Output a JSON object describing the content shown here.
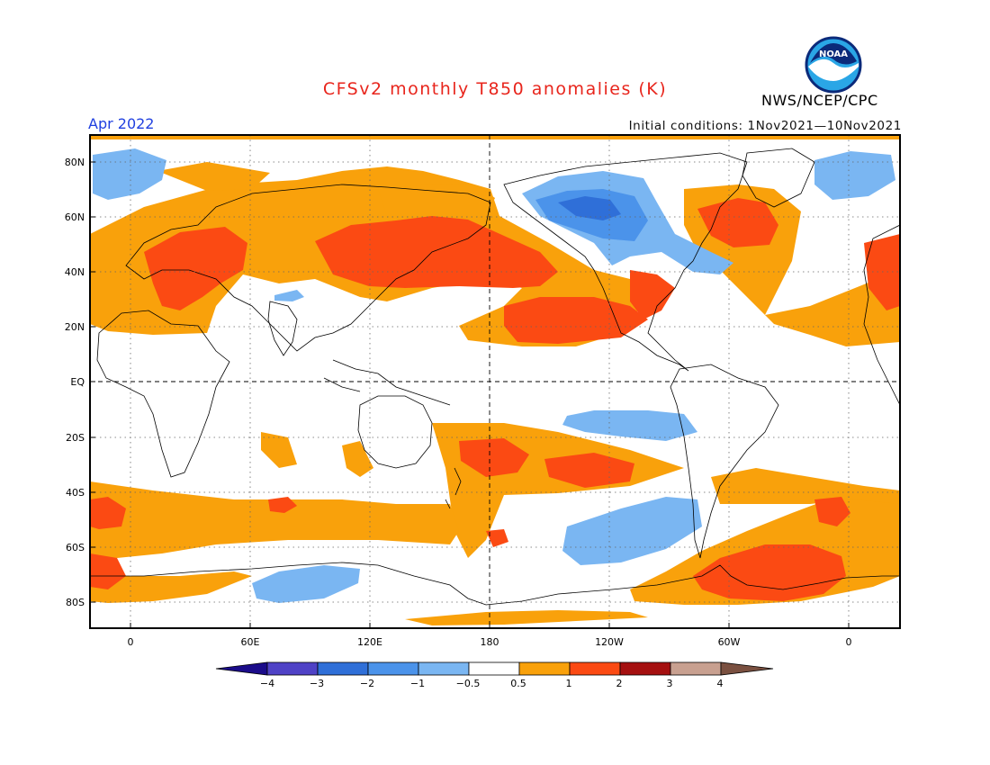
{
  "header": {
    "title": "CFSv2 monthly T850 anomalies (K)",
    "period": "Apr 2022",
    "initial_conditions": "Initial conditions: 1Nov2021—10Nov2021",
    "agency": "NWS/NCEP/CPC",
    "logo_text": "NOAA"
  },
  "map": {
    "lat_labels": [
      "80N",
      "60N",
      "40N",
      "20N",
      "EQ",
      "20S",
      "40S",
      "60S",
      "80S"
    ],
    "lon_labels": [
      "0",
      "60E",
      "120E",
      "180",
      "120W",
      "60W",
      "0"
    ],
    "projection": "cylindrical equidistant, centered 180",
    "grid": "dotted"
  },
  "colorbar": {
    "labels": [
      "−4",
      "−3",
      "−2",
      "−1",
      "−0.5",
      "0.5",
      "1",
      "2",
      "3",
      "4"
    ],
    "colors": [
      "#1b0c8a",
      "#4f42c6",
      "#2f6fd8",
      "#4b93ea",
      "#7ab6f2",
      "#ffffff",
      "#f9a10b",
      "#fb4a13",
      "#a51010",
      "#c8a090",
      "#7a5040"
    ]
  }
}
